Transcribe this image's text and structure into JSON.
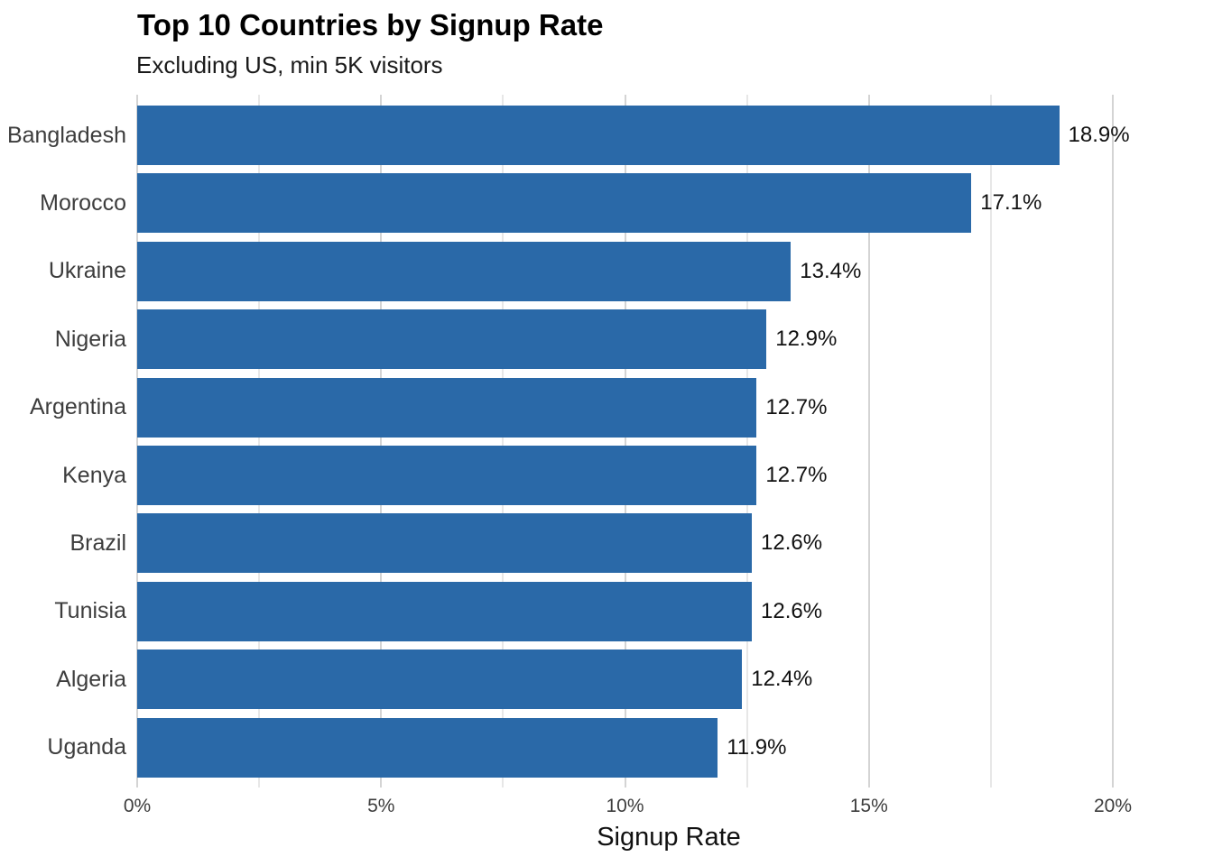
{
  "chart_data": {
    "type": "bar",
    "orientation": "horizontal",
    "title": "Top 10 Countries by Signup Rate",
    "subtitle": "Excluding US, min 5K visitors",
    "xlabel": "Signup Rate",
    "ylabel": "",
    "categories": [
      "Bangladesh",
      "Morocco",
      "Ukraine",
      "Nigeria",
      "Argentina",
      "Kenya",
      "Brazil",
      "Tunisia",
      "Algeria",
      "Uganda"
    ],
    "values": [
      18.9,
      17.1,
      13.4,
      12.9,
      12.7,
      12.7,
      12.6,
      12.6,
      12.4,
      11.9
    ],
    "value_labels": [
      "18.9%",
      "17.1%",
      "13.4%",
      "12.9%",
      "12.7%",
      "12.7%",
      "12.6%",
      "12.6%",
      "12.4%",
      "11.9%"
    ],
    "xlim": [
      0,
      21.8
    ],
    "xticks": [
      0,
      5,
      10,
      15,
      20
    ],
    "xtick_labels": [
      "0%",
      "5%",
      "10%",
      "15%",
      "20%"
    ],
    "minor_tick_step": 2.5,
    "grid": "vertical major and minor gridlines, drawn behind bars",
    "legend": "none",
    "bar_color": "#2a69a8",
    "major_grid_color": "#d4d4d4",
    "minor_grid_color": "#e7e7e7",
    "title_color": "#000000",
    "label_color": "#3d3d3d",
    "value_label_color": "#111111"
  }
}
